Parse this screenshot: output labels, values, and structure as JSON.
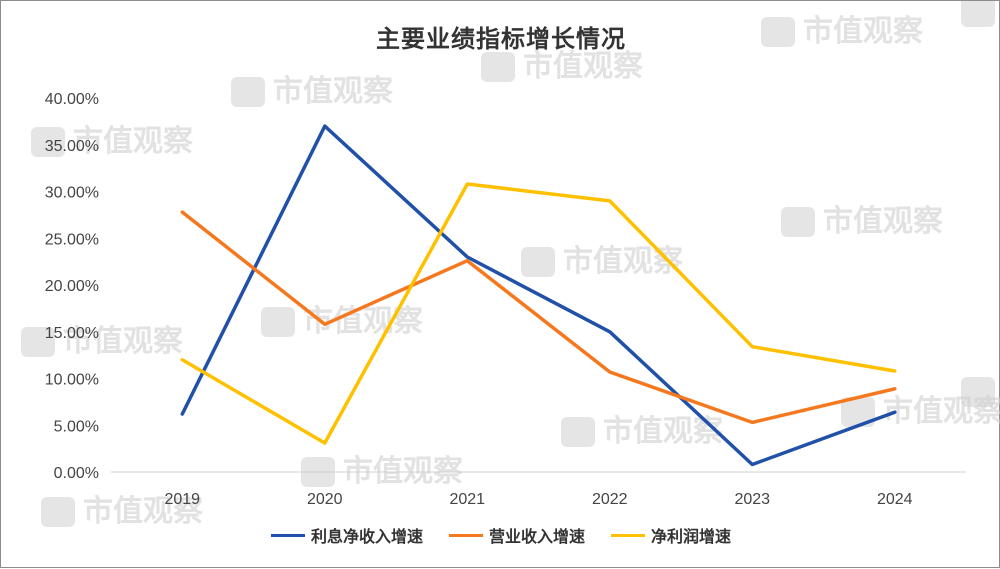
{
  "watermark": "市值观察",
  "chart_data": {
    "type": "line",
    "title": "主要业绩指标增长情况",
    "categories": [
      "2019",
      "2020",
      "2021",
      "2022",
      "2023",
      "2024"
    ],
    "ylim": [
      0,
      40
    ],
    "yticks": [
      "0.00%",
      "5.00%",
      "10.00%",
      "15.00%",
      "20.00%",
      "25.00%",
      "30.00%",
      "35.00%",
      "40.00%"
    ],
    "grid": false,
    "legend_position": "bottom",
    "series": [
      {
        "name": "利息净收入增速",
        "color": "#2150a8",
        "values": [
          6.2,
          37.0,
          23.0,
          15.0,
          0.8,
          6.4
        ]
      },
      {
        "name": "营业收入增速",
        "color": "#f5781e",
        "values": [
          27.8,
          15.8,
          22.6,
          10.7,
          5.3,
          8.9
        ]
      },
      {
        "name": "净利润增速",
        "color": "#ffc000",
        "values": [
          12.0,
          3.1,
          30.8,
          29.0,
          13.4,
          10.8
        ]
      }
    ]
  }
}
